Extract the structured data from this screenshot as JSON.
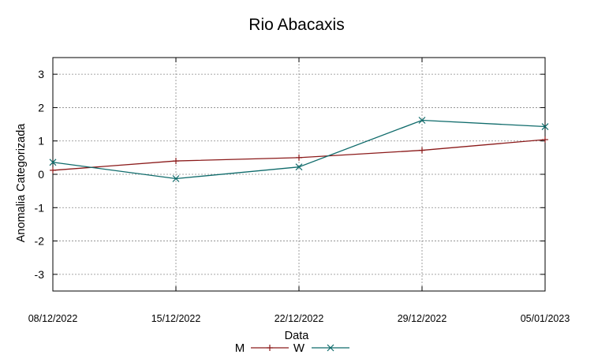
{
  "chart_data": {
    "type": "line",
    "title": "Rio Abacaxis",
    "xlabel": "Data",
    "ylabel": "Anomalia Categorizada",
    "categories": [
      "08/12/2022",
      "15/12/2022",
      "22/12/2022",
      "29/12/2022",
      "05/01/2023"
    ],
    "ylim": [
      -3.5,
      3.5
    ],
    "yticks": [
      -3,
      -2,
      -1,
      0,
      1,
      2,
      3
    ],
    "grid": true,
    "legend_position": "bottom",
    "series": [
      {
        "name": "M",
        "color": "#8b1a1a",
        "marker": "plus",
        "values": [
          0.12,
          0.4,
          0.5,
          0.72,
          1.04
        ]
      },
      {
        "name": "W",
        "color": "#0f6b6b",
        "marker": "x",
        "values": [
          0.36,
          -0.13,
          0.22,
          1.62,
          1.43
        ]
      }
    ]
  }
}
